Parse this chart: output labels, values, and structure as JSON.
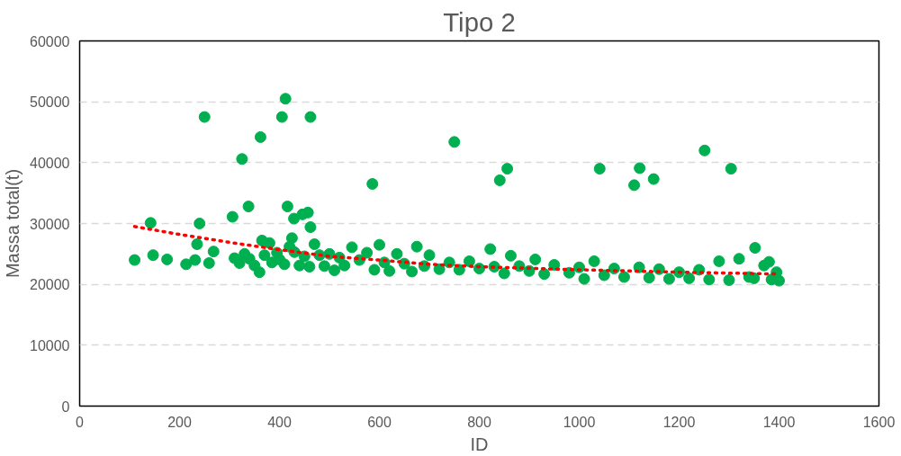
{
  "chart_data": {
    "type": "scatter",
    "title": "Tipo 2",
    "xlabel": "ID",
    "ylabel": "Massa total(t)",
    "xlim": [
      0,
      1600
    ],
    "xticks": [
      0,
      200,
      400,
      600,
      800,
      1000,
      1200,
      1400,
      1600
    ],
    "ylim": [
      0,
      60000
    ],
    "yticks": [
      0,
      10000,
      20000,
      30000,
      40000,
      50000,
      60000
    ],
    "grid": "y",
    "marker": "circle",
    "series": [
      {
        "color": "#00b050",
        "x": [
          110,
          142,
          147,
          175,
          213,
          231,
          235,
          240,
          250,
          259,
          268,
          306,
          325,
          338,
          362,
          405,
          412,
          416,
          429,
          446,
          457,
          462,
          462,
          586,
          750,
          841,
          856,
          1041,
          1110,
          1121,
          1149,
          1251,
          1304,
          1352,
          822,
          863,
          912,
          310,
          320,
          330,
          340,
          350,
          360,
          365,
          370,
          380,
          385,
          395,
          400,
          410,
          420,
          425,
          430,
          440,
          450,
          460,
          470,
          480,
          490,
          500,
          510,
          520,
          530,
          545,
          560,
          575,
          590,
          600,
          610,
          620,
          635,
          650,
          665,
          675,
          690,
          700,
          720,
          740,
          760,
          780,
          800,
          830,
          850,
          880,
          900,
          930,
          950,
          980,
          1000,
          1010,
          1030,
          1050,
          1070,
          1090,
          1120,
          1140,
          1160,
          1180,
          1200,
          1220,
          1240,
          1260,
          1280,
          1300,
          1320,
          1340,
          1370,
          1380,
          1395,
          1400,
          1385,
          1350
        ],
        "values": [
          24000,
          30100,
          24800,
          24100,
          23300,
          24000,
          26600,
          30000,
          47500,
          23500,
          25400,
          31100,
          40600,
          32800,
          44200,
          47500,
          50500,
          32800,
          30800,
          31500,
          31800,
          29400,
          47500,
          36500,
          43400,
          37100,
          39000,
          39000,
          36300,
          39100,
          37300,
          42000,
          39000,
          26000,
          25800,
          24700,
          24100,
          24300,
          23500,
          25000,
          24200,
          23100,
          22000,
          27200,
          24800,
          26800,
          23600,
          25200,
          24100,
          23300,
          26200,
          27600,
          25300,
          23100,
          24600,
          22900,
          26600,
          24800,
          23000,
          25000,
          22300,
          24400,
          23100,
          26100,
          24000,
          25200,
          22400,
          26500,
          23600,
          22200,
          25000,
          23400,
          22100,
          26200,
          23000,
          24800,
          22500,
          23600,
          22400,
          23800,
          22600,
          22900,
          21800,
          23000,
          22200,
          21700,
          23200,
          21900,
          22800,
          20900,
          23800,
          21500,
          22600,
          21200,
          22800,
          21100,
          22500,
          20900,
          22000,
          21000,
          22400,
          20800,
          23800,
          20700,
          24200,
          21200,
          23100,
          23700,
          22000,
          20600,
          20800,
          21000
        ]
      },
      {
        "type": "line",
        "color": "#ff0000",
        "line_style": "dotted",
        "marker": "none",
        "x": [
          110,
          200,
          300,
          400,
          500,
          600,
          700,
          800,
          1000,
          1200,
          1400
        ],
        "values": [
          29500,
          28200,
          26900,
          25700,
          24600,
          24000,
          23300,
          22900,
          22400,
          22000,
          21700
        ]
      }
    ]
  }
}
